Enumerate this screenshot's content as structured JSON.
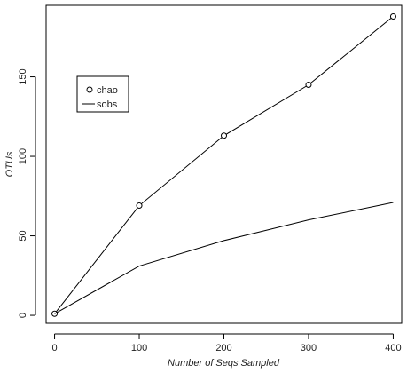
{
  "chart_data": {
    "type": "line",
    "xlabel": "Number of Seqs Sampled",
    "ylabel": "OTUs",
    "xlim": [
      -10,
      410
    ],
    "ylim": [
      -5,
      195
    ],
    "x_ticks": [
      0,
      100,
      200,
      300,
      400
    ],
    "y_ticks": [
      0,
      50,
      100,
      150
    ],
    "series": [
      {
        "name": "chao",
        "marker": "open-circle",
        "x": [
          0,
          100,
          200,
          300,
          400
        ],
        "y": [
          1,
          69,
          113,
          145,
          188
        ]
      },
      {
        "name": "sobs",
        "marker": "none",
        "x": [
          0,
          100,
          200,
          300,
          400
        ],
        "y": [
          1,
          31,
          47,
          60,
          71
        ]
      }
    ],
    "legend": {
      "placement": "top-left",
      "entries": [
        "chao",
        "sobs"
      ]
    },
    "grid": false,
    "line_color": "#000000"
  }
}
